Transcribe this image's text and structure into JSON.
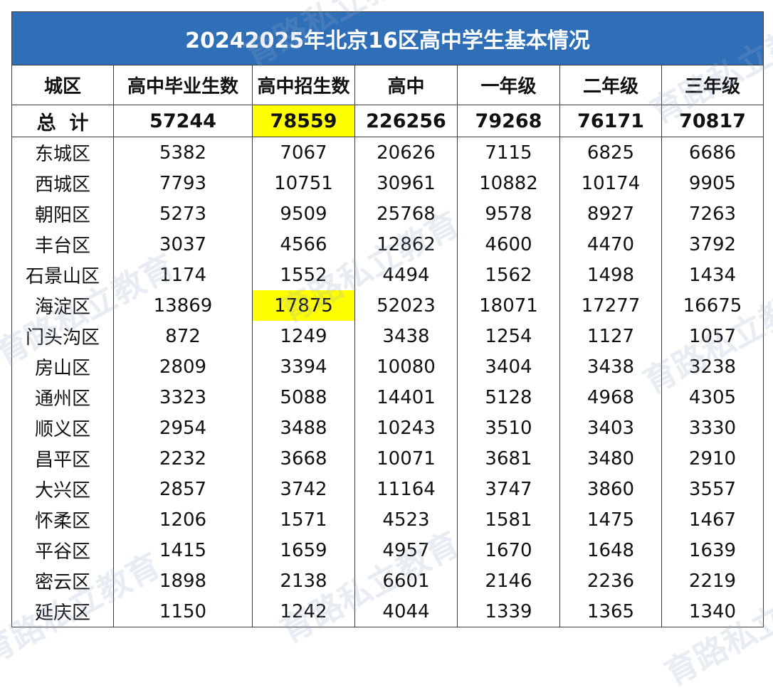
{
  "title": "20242025年北京16区高中学生基本情况",
  "columns": [
    "城区",
    "高中毕业生数",
    "高中招生数",
    "高中",
    "一年级",
    "二年级",
    "三年级"
  ],
  "total_row": {
    "name": "总  计",
    "values": [
      "57244",
      "78559",
      "226256",
      "79268",
      "76171",
      "70817"
    ]
  },
  "rows": [
    {
      "name": "东城区",
      "values": [
        "5382",
        "7067",
        "20626",
        "7115",
        "6825",
        "6686"
      ]
    },
    {
      "name": "西城区",
      "values": [
        "7793",
        "10751",
        "30961",
        "10882",
        "10174",
        "9905"
      ]
    },
    {
      "name": "朝阳区",
      "values": [
        "5273",
        "9509",
        "25768",
        "9578",
        "8927",
        "7263"
      ]
    },
    {
      "name": "丰台区",
      "values": [
        "3037",
        "4566",
        "12862",
        "4600",
        "4470",
        "3792"
      ]
    },
    {
      "name": "石景山区",
      "values": [
        "1174",
        "1552",
        "4494",
        "1562",
        "1498",
        "1434"
      ]
    },
    {
      "name": "海淀区",
      "values": [
        "13869",
        "17875",
        "52023",
        "18071",
        "17277",
        "16675"
      ]
    },
    {
      "name": "门头沟区",
      "values": [
        "872",
        "1249",
        "3438",
        "1254",
        "1127",
        "1057"
      ]
    },
    {
      "name": "房山区",
      "values": [
        "2809",
        "3394",
        "10080",
        "3404",
        "3438",
        "3238"
      ]
    },
    {
      "name": "通州区",
      "values": [
        "3323",
        "5088",
        "14401",
        "5128",
        "4968",
        "4305"
      ]
    },
    {
      "name": "顺义区",
      "values": [
        "2954",
        "3488",
        "10243",
        "3510",
        "3403",
        "3330"
      ]
    },
    {
      "name": "昌平区",
      "values": [
        "2232",
        "3668",
        "10071",
        "3681",
        "3480",
        "2910"
      ]
    },
    {
      "name": "大兴区",
      "values": [
        "2857",
        "3742",
        "11164",
        "3747",
        "3860",
        "3557"
      ]
    },
    {
      "name": "怀柔区",
      "values": [
        "1206",
        "1571",
        "4523",
        "1581",
        "1475",
        "1467"
      ]
    },
    {
      "name": "平谷区",
      "values": [
        "1415",
        "1659",
        "4957",
        "1670",
        "1648",
        "1639"
      ]
    },
    {
      "name": "密云区",
      "values": [
        "1898",
        "2138",
        "6601",
        "2146",
        "2236",
        "2219"
      ]
    },
    {
      "name": "延庆区",
      "values": [
        "1150",
        "1242",
        "4044",
        "1339",
        "1365",
        "1340"
      ]
    }
  ],
  "watermark": "育路私立教育",
  "colors": {
    "title_bg": "#2f6fb8",
    "highlight": "#ffff00"
  }
}
